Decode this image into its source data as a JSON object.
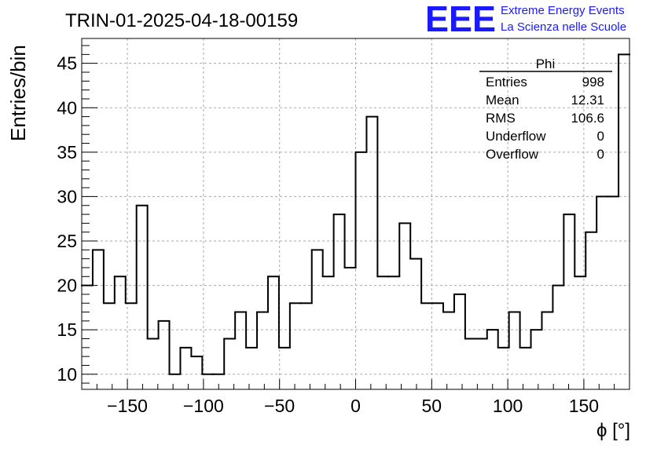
{
  "header": {
    "title": "TRIN-01-2025-04-18-00159",
    "logo_text": "EEE",
    "logo_line1": "Extreme Energy Events",
    "logo_line2": "La Scienza nelle Scuole"
  },
  "stats": {
    "name": "Phi",
    "rows": [
      {
        "label": "Entries",
        "value": "998"
      },
      {
        "label": "Mean",
        "value": "12.31"
      },
      {
        "label": "RMS",
        "value": "106.6"
      },
      {
        "label": "Underflow",
        "value": "0"
      },
      {
        "label": "Overflow",
        "value": "0"
      }
    ]
  },
  "colors": {
    "logo": "#1a1aff",
    "line": "#000000",
    "grid": "#aaaaaa"
  },
  "chart_data": {
    "type": "histogram",
    "title": "TRIN-01-2025-04-18-00159",
    "xlabel": "ϕ [°]",
    "ylabel": "Entries/bin",
    "xlim": [
      -180,
      180
    ],
    "ylim": [
      8.3,
      47.8
    ],
    "bin_edges_start": -180,
    "bin_width": 7.2,
    "values": [
      20,
      24,
      18,
      21,
      18,
      29,
      14,
      16,
      10,
      13,
      12,
      10,
      10,
      14,
      17,
      13,
      17,
      21,
      13,
      18,
      18,
      24,
      21,
      28,
      22,
      35,
      39,
      21,
      21,
      27,
      23,
      18,
      18,
      17,
      19,
      14,
      14,
      15,
      13,
      17,
      13,
      15,
      17,
      20,
      28,
      21,
      26,
      30,
      30,
      46
    ],
    "xticks": [
      -150,
      -100,
      -50,
      0,
      50,
      100,
      150
    ],
    "xtick_labels": [
      "−150",
      "−100",
      "−50",
      "0",
      "50",
      "100",
      "150"
    ],
    "yticks": [
      10,
      15,
      20,
      25,
      30,
      35,
      40,
      45
    ],
    "ytick_labels": [
      "10",
      "15",
      "20",
      "25",
      "30",
      "35",
      "40",
      "45"
    ],
    "grid": true,
    "legend": "stats box top-right"
  }
}
